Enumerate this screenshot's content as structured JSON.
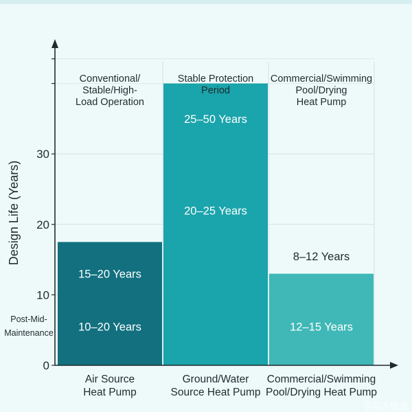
{
  "chart_data": {
    "type": "bar",
    "ylabel": "Design Life (Years)",
    "xlabel": "",
    "ylim": [
      0,
      46
    ],
    "y_ticks": [
      0,
      10,
      20,
      30
    ],
    "grid": true,
    "categories": [
      "Air Source\nHeat Pump",
      "Ground/Water\nSource Heat Pump",
      "Commercial/Swimming\nPool/Drying Heat Pump"
    ],
    "values": [
      17.5,
      40,
      13
    ],
    "column_headers": [
      "Conventional/\nStable/High-\nLoad Operation",
      "Stable Protection\nPeriod",
      "Commercial/Swimming\nPool/Drying\nHeat Pump"
    ],
    "annotations": [
      {
        "category": 0,
        "text": "15–20 Years",
        "y": 13
      },
      {
        "category": 0,
        "text": "10–20 Years",
        "y": 5.5
      },
      {
        "category": 1,
        "text": "25–50 Years",
        "y": 35
      },
      {
        "category": 1,
        "text": "20–25 Years",
        "y": 22
      },
      {
        "category": 2,
        "text": "8–12 Years",
        "y": 15.5,
        "outside": true
      },
      {
        "category": 2,
        "text": "12–15 Years",
        "y": 5.5
      }
    ],
    "side_note": "Post-Mid-\nMaintenance",
    "colors": [
      "#12707f",
      "#1aa4ab",
      "#3fb8b7"
    ]
  },
  "watermark": "百可人性说"
}
